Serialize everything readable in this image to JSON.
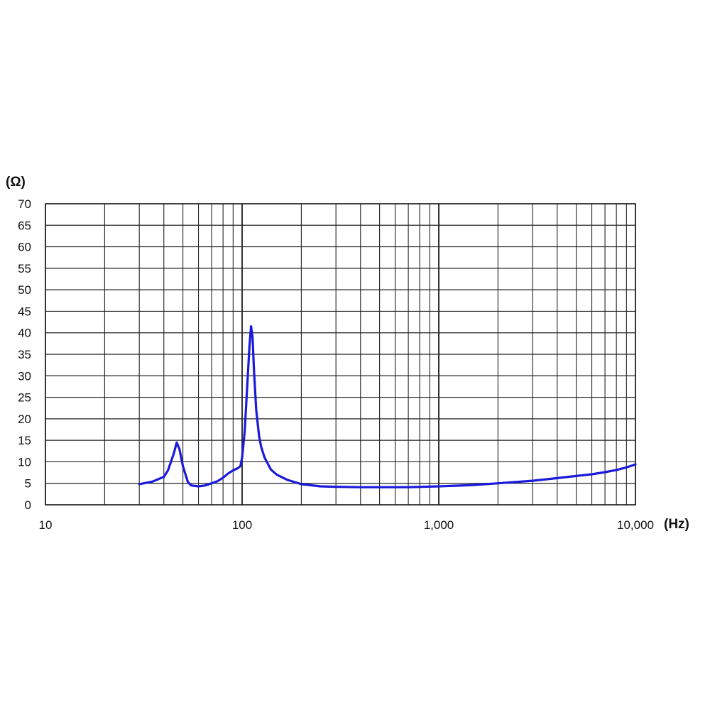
{
  "chart_data": {
    "type": "line",
    "x_scale": "log",
    "xlim": [
      10,
      10000
    ],
    "ylim": [
      0,
      70
    ],
    "grid": true,
    "y_unit_label": "(Ω)",
    "x_unit_label": "(Hz)",
    "y_ticks": [
      "0",
      "5",
      "10",
      "15",
      "20",
      "25",
      "30",
      "35",
      "40",
      "45",
      "50",
      "55",
      "60",
      "65",
      "70"
    ],
    "x_ticks": [
      "10",
      "100",
      "1,000",
      "10,000"
    ],
    "series": [
      {
        "color": "#1a1adb",
        "x": [
          30,
          35,
          40,
          42,
          45,
          46.5,
          48,
          50,
          53,
          55,
          60,
          65,
          70,
          75,
          80,
          85,
          90,
          95,
          98,
          100,
          103,
          106,
          109,
          111,
          113,
          115,
          118,
          122,
          125,
          130,
          140,
          150,
          170,
          200,
          250,
          300,
          400,
          500,
          700,
          1000,
          1500,
          2000,
          3000,
          4000,
          5000,
          6000,
          7000,
          8000,
          9000,
          10000
        ],
        "y": [
          4.8,
          5.4,
          6.5,
          8,
          12,
          14.5,
          13,
          9,
          5.3,
          4.5,
          4.3,
          4.5,
          5,
          5.5,
          6.3,
          7.3,
          8,
          8.5,
          9,
          11,
          17,
          27,
          37,
          41.5,
          39,
          31,
          22,
          16,
          13.5,
          11,
          8.2,
          7,
          5.8,
          4.8,
          4.3,
          4.2,
          4.1,
          4.1,
          4.1,
          4.3,
          4.6,
          5.0,
          5.6,
          6.2,
          6.7,
          7.1,
          7.6,
          8.1,
          8.7,
          9.4
        ]
      }
    ]
  }
}
